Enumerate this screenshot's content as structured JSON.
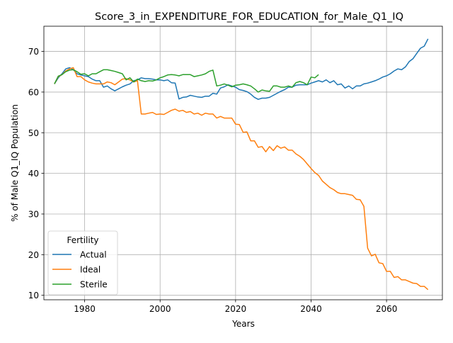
{
  "chart_data": {
    "type": "line",
    "title": "Score_3_in_EXPENDITURE_FOR_EDUCATION_for_Male_Q1_IQ",
    "xlabel": "Years",
    "ylabel": "% of Male Q1_IQ Population",
    "xlim": [
      1969.2,
      2074.8
    ],
    "ylim": [
      8.9,
      76.2
    ],
    "xticks": [
      1980,
      2000,
      2020,
      2040,
      2060
    ],
    "yticks": [
      10,
      20,
      30,
      40,
      50,
      60,
      70
    ],
    "grid": true,
    "legend": {
      "title": "Fertility",
      "position": "lower-left"
    },
    "series": [
      {
        "name": "Actual",
        "color": "#1f77b4",
        "points": [
          [
            1972,
            62.0
          ],
          [
            1973,
            63.5
          ],
          [
            1974,
            64.5
          ],
          [
            1975,
            65.7
          ],
          [
            1976,
            66.0
          ],
          [
            1977,
            65.5
          ],
          [
            1978,
            64.5
          ],
          [
            1979,
            64.2
          ],
          [
            1980,
            64.0
          ],
          [
            1981,
            63.8
          ],
          [
            1982,
            63.2
          ],
          [
            1983,
            62.8
          ],
          [
            1984,
            62.8
          ],
          [
            1985,
            61.2
          ],
          [
            1986,
            61.5
          ],
          [
            1987,
            60.8
          ],
          [
            1988,
            60.3
          ],
          [
            1989,
            60.8
          ],
          [
            1990,
            61.3
          ],
          [
            1991,
            61.7
          ],
          [
            1992,
            62.0
          ],
          [
            1993,
            62.8
          ],
          [
            1994,
            63.0
          ],
          [
            1995,
            63.5
          ],
          [
            1996,
            63.3
          ],
          [
            1997,
            63.3
          ],
          [
            1998,
            63.2
          ],
          [
            1999,
            63.0
          ],
          [
            2000,
            63.0
          ],
          [
            2001,
            62.8
          ],
          [
            2002,
            63.0
          ],
          [
            2003,
            62.3
          ],
          [
            2004,
            62.2
          ],
          [
            2005,
            58.3
          ],
          [
            2006,
            58.7
          ],
          [
            2007,
            58.8
          ],
          [
            2008,
            59.2
          ],
          [
            2009,
            59.0
          ],
          [
            2010,
            58.8
          ],
          [
            2011,
            58.7
          ],
          [
            2012,
            59.0
          ],
          [
            2013,
            59.0
          ],
          [
            2014,
            59.7
          ],
          [
            2015,
            59.5
          ],
          [
            2016,
            61.0
          ],
          [
            2017,
            61.3
          ],
          [
            2018,
            61.8
          ],
          [
            2019,
            61.5
          ],
          [
            2020,
            61.2
          ],
          [
            2021,
            60.6
          ],
          [
            2022,
            60.4
          ],
          [
            2023,
            60.1
          ],
          [
            2024,
            59.5
          ],
          [
            2025,
            58.7
          ],
          [
            2026,
            58.2
          ],
          [
            2027,
            58.5
          ],
          [
            2028,
            58.5
          ],
          [
            2029,
            58.7
          ],
          [
            2030,
            59.2
          ],
          [
            2031,
            59.7
          ],
          [
            2032,
            60.2
          ],
          [
            2033,
            60.6
          ],
          [
            2034,
            61.2
          ],
          [
            2035,
            61.2
          ],
          [
            2036,
            61.7
          ],
          [
            2037,
            61.8
          ],
          [
            2038,
            61.8
          ],
          [
            2039,
            61.8
          ],
          [
            2040,
            62.2
          ],
          [
            2041,
            62.5
          ],
          [
            2042,
            62.8
          ],
          [
            2043,
            62.5
          ],
          [
            2044,
            63.0
          ],
          [
            2045,
            62.3
          ],
          [
            2046,
            62.8
          ],
          [
            2047,
            61.8
          ],
          [
            2048,
            62.0
          ],
          [
            2049,
            61.0
          ],
          [
            2050,
            61.5
          ],
          [
            2051,
            60.8
          ],
          [
            2052,
            61.5
          ],
          [
            2053,
            61.5
          ],
          [
            2054,
            62.0
          ],
          [
            2055,
            62.2
          ],
          [
            2056,
            62.5
          ],
          [
            2057,
            62.8
          ],
          [
            2058,
            63.2
          ],
          [
            2059,
            63.7
          ],
          [
            2060,
            64.0
          ],
          [
            2061,
            64.5
          ],
          [
            2062,
            65.2
          ],
          [
            2063,
            65.7
          ],
          [
            2064,
            65.5
          ],
          [
            2065,
            66.2
          ],
          [
            2066,
            67.5
          ],
          [
            2067,
            68.2
          ],
          [
            2068,
            69.5
          ],
          [
            2069,
            70.8
          ],
          [
            2070,
            71.3
          ],
          [
            2071,
            73.1
          ]
        ]
      },
      {
        "name": "Ideal",
        "color": "#ff7f0e",
        "points": [
          [
            1972,
            62.0
          ],
          [
            1973,
            63.8
          ],
          [
            1974,
            64.3
          ],
          [
            1975,
            65.2
          ],
          [
            1976,
            65.7
          ],
          [
            1977,
            66.0
          ],
          [
            1978,
            63.8
          ],
          [
            1979,
            63.8
          ],
          [
            1980,
            63.0
          ],
          [
            1981,
            62.5
          ],
          [
            1982,
            62.2
          ],
          [
            1983,
            62.0
          ],
          [
            1984,
            62.0
          ],
          [
            1985,
            62.0
          ],
          [
            1986,
            62.5
          ],
          [
            1987,
            62.3
          ],
          [
            1988,
            61.8
          ],
          [
            1989,
            62.5
          ],
          [
            1990,
            63.2
          ],
          [
            1991,
            63.3
          ],
          [
            1992,
            63.0
          ],
          [
            1993,
            62.5
          ],
          [
            1994,
            62.8
          ],
          [
            1995,
            54.6
          ],
          [
            1996,
            54.6
          ],
          [
            1997,
            54.8
          ],
          [
            1998,
            55.0
          ],
          [
            1999,
            54.5
          ],
          [
            2000,
            54.6
          ],
          [
            2001,
            54.5
          ],
          [
            2002,
            55.0
          ],
          [
            2003,
            55.5
          ],
          [
            2004,
            55.8
          ],
          [
            2005,
            55.3
          ],
          [
            2006,
            55.5
          ],
          [
            2007,
            55.0
          ],
          [
            2008,
            55.2
          ],
          [
            2009,
            54.6
          ],
          [
            2010,
            54.8
          ],
          [
            2011,
            54.3
          ],
          [
            2012,
            54.8
          ],
          [
            2013,
            54.6
          ],
          [
            2014,
            54.6
          ],
          [
            2015,
            53.6
          ],
          [
            2016,
            54.0
          ],
          [
            2017,
            53.6
          ],
          [
            2018,
            53.6
          ],
          [
            2019,
            53.6
          ],
          [
            2020,
            52.1
          ],
          [
            2021,
            52.0
          ],
          [
            2022,
            50.1
          ],
          [
            2023,
            50.2
          ],
          [
            2024,
            48.0
          ],
          [
            2025,
            48.0
          ],
          [
            2026,
            46.4
          ],
          [
            2027,
            46.6
          ],
          [
            2028,
            45.3
          ],
          [
            2029,
            46.6
          ],
          [
            2030,
            45.6
          ],
          [
            2031,
            46.8
          ],
          [
            2032,
            46.2
          ],
          [
            2033,
            46.5
          ],
          [
            2034,
            45.7
          ],
          [
            2035,
            45.7
          ],
          [
            2036,
            44.8
          ],
          [
            2037,
            44.2
          ],
          [
            2038,
            43.4
          ],
          [
            2039,
            42.3
          ],
          [
            2040,
            41.2
          ],
          [
            2041,
            40.2
          ],
          [
            2042,
            39.5
          ],
          [
            2043,
            38.1
          ],
          [
            2044,
            37.3
          ],
          [
            2045,
            36.5
          ],
          [
            2046,
            36.0
          ],
          [
            2047,
            35.3
          ],
          [
            2048,
            35.0
          ],
          [
            2049,
            35.0
          ],
          [
            2050,
            34.8
          ],
          [
            2051,
            34.6
          ],
          [
            2052,
            33.6
          ],
          [
            2053,
            33.5
          ],
          [
            2054,
            31.9
          ],
          [
            2055,
            21.6
          ],
          [
            2056,
            19.7
          ],
          [
            2057,
            20.1
          ],
          [
            2058,
            18.0
          ],
          [
            2059,
            17.8
          ],
          [
            2060,
            15.9
          ],
          [
            2061,
            15.9
          ],
          [
            2062,
            14.4
          ],
          [
            2063,
            14.6
          ],
          [
            2064,
            13.8
          ],
          [
            2065,
            13.8
          ],
          [
            2066,
            13.4
          ],
          [
            2067,
            13.0
          ],
          [
            2068,
            12.9
          ],
          [
            2069,
            12.2
          ],
          [
            2070,
            12.2
          ],
          [
            2071,
            11.4
          ]
        ]
      },
      {
        "name": "Sterile",
        "color": "#2ca02c",
        "points": [
          [
            1972,
            62.0
          ],
          [
            1973,
            63.9
          ],
          [
            1974,
            64.3
          ],
          [
            1975,
            65.0
          ],
          [
            1976,
            65.4
          ],
          [
            1977,
            65.5
          ],
          [
            1978,
            65.0
          ],
          [
            1979,
            64.4
          ],
          [
            1980,
            64.5
          ],
          [
            1981,
            64.0
          ],
          [
            1982,
            64.5
          ],
          [
            1983,
            64.5
          ],
          [
            1984,
            65.0
          ],
          [
            1985,
            65.5
          ],
          [
            1986,
            65.5
          ],
          [
            1987,
            65.3
          ],
          [
            1988,
            65.1
          ],
          [
            1989,
            64.8
          ],
          [
            1990,
            64.5
          ],
          [
            1991,
            63.0
          ],
          [
            1992,
            63.5
          ],
          [
            1993,
            62.5
          ],
          [
            1994,
            63.2
          ],
          [
            1995,
            62.8
          ],
          [
            1996,
            62.6
          ],
          [
            1997,
            62.8
          ],
          [
            1998,
            62.7
          ],
          [
            1999,
            63.0
          ],
          [
            2000,
            63.5
          ],
          [
            2001,
            63.8
          ],
          [
            2002,
            64.2
          ],
          [
            2003,
            64.3
          ],
          [
            2004,
            64.2
          ],
          [
            2005,
            64.0
          ],
          [
            2006,
            64.3
          ],
          [
            2007,
            64.3
          ],
          [
            2008,
            64.3
          ],
          [
            2009,
            63.8
          ],
          [
            2010,
            64.0
          ],
          [
            2011,
            64.2
          ],
          [
            2012,
            64.5
          ],
          [
            2013,
            65.1
          ],
          [
            2014,
            65.4
          ],
          [
            2015,
            61.5
          ],
          [
            2016,
            61.7
          ],
          [
            2017,
            62.0
          ],
          [
            2018,
            61.7
          ],
          [
            2019,
            61.3
          ],
          [
            2020,
            61.7
          ],
          [
            2021,
            61.8
          ],
          [
            2022,
            62.0
          ],
          [
            2023,
            61.8
          ],
          [
            2024,
            61.5
          ],
          [
            2025,
            60.8
          ],
          [
            2026,
            60.0
          ],
          [
            2027,
            60.5
          ],
          [
            2028,
            60.3
          ],
          [
            2029,
            60.2
          ],
          [
            2030,
            61.5
          ],
          [
            2031,
            61.5
          ],
          [
            2032,
            61.2
          ],
          [
            2033,
            61.2
          ],
          [
            2034,
            61.5
          ],
          [
            2035,
            61.2
          ],
          [
            2036,
            62.3
          ],
          [
            2037,
            62.6
          ],
          [
            2038,
            62.3
          ],
          [
            2039,
            61.8
          ],
          [
            2040,
            63.7
          ],
          [
            2041,
            63.5
          ],
          [
            2042,
            64.3
          ]
        ]
      }
    ]
  }
}
